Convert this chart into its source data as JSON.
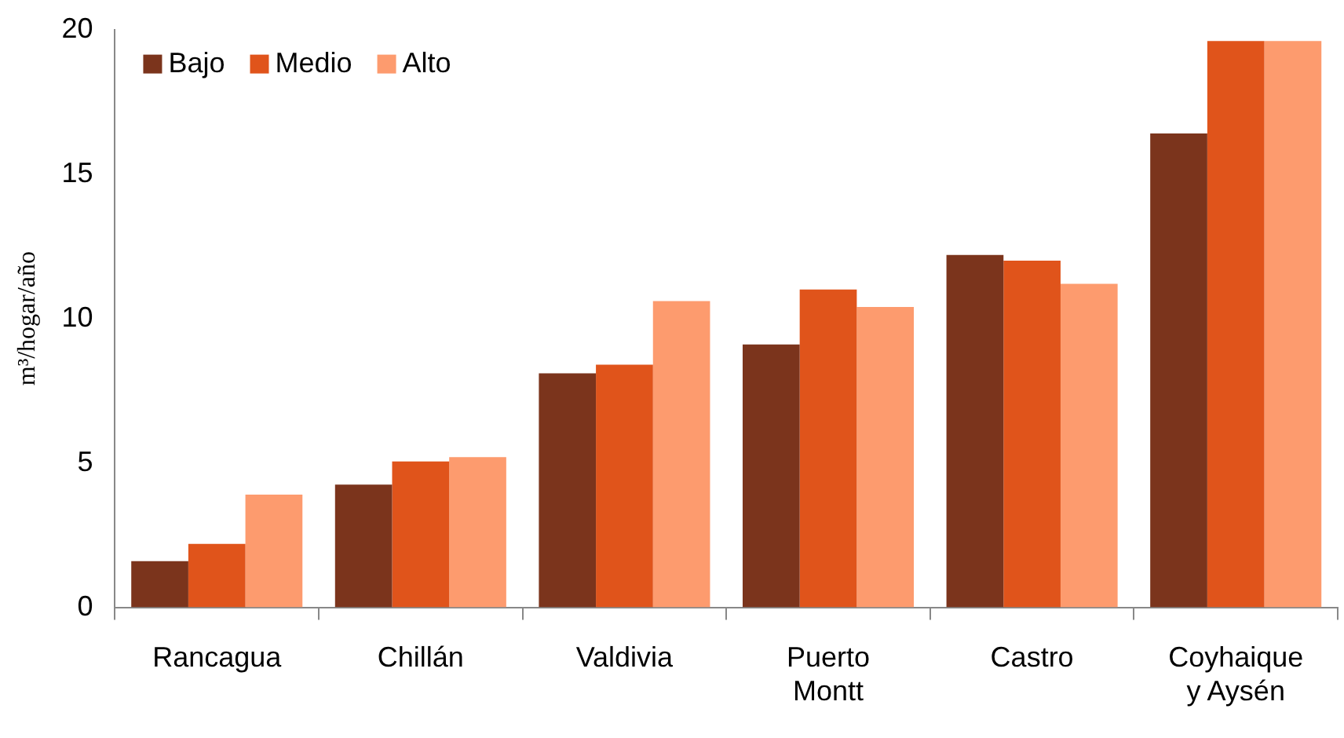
{
  "chart_data": {
    "type": "bar",
    "ylabel": "m³/hogar/año",
    "categories": [
      "Rancagua",
      "Chillán",
      "Valdivia",
      "Puerto Montt",
      "Castro",
      "Coyhaique y Aysén"
    ],
    "series": [
      {
        "name": "Bajo",
        "color": "#7b341c",
        "values": [
          1.6,
          4.25,
          8.1,
          9.1,
          12.2,
          16.4
        ]
      },
      {
        "name": "Medio",
        "color": "#e0541b",
        "values": [
          2.2,
          5.05,
          8.4,
          11.0,
          12.0,
          19.6
        ]
      },
      {
        "name": "Alto",
        "color": "#fd9b6e",
        "values": [
          3.9,
          5.2,
          10.6,
          10.4,
          11.2,
          19.6
        ]
      }
    ],
    "ylim": [
      0,
      20
    ],
    "yticks": [
      0,
      5,
      10,
      15,
      20
    ],
    "grid": false,
    "legend": "top left"
  }
}
